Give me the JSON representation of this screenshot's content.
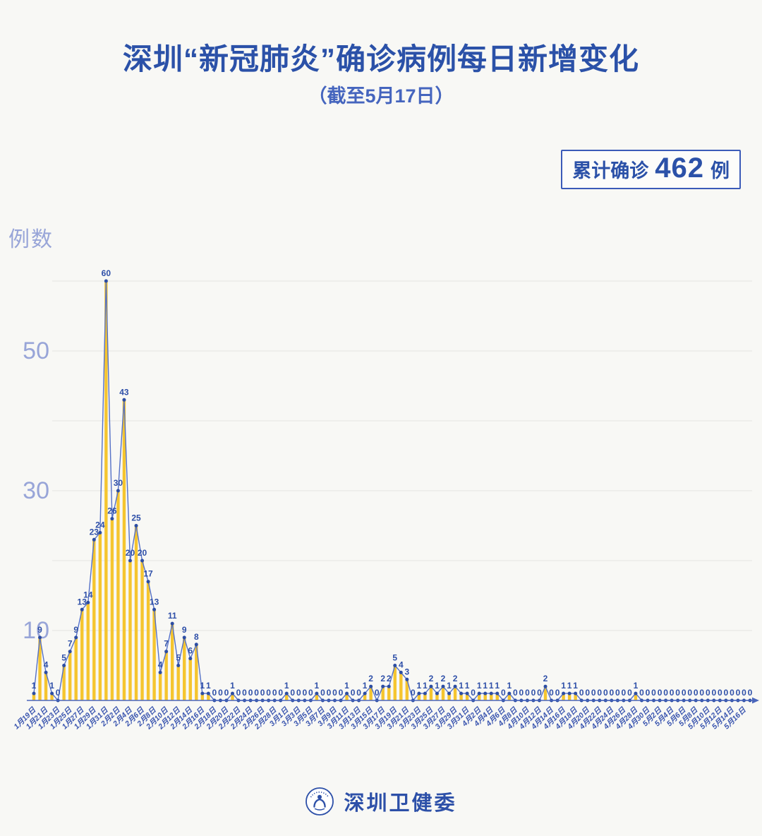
{
  "title": "深圳“新冠肺炎”确诊病例每日新增变化",
  "subtitle": "（截至5月17日）",
  "badge": {
    "prefix": "累计确诊",
    "value": "462",
    "suffix": "例"
  },
  "footer": {
    "org": "深圳卫健委",
    "logo_icon": "shenzhen-health-commission-seal"
  },
  "chart_data": {
    "type": "bar",
    "line_overlay": true,
    "title": "深圳“新冠肺炎”确诊病例每日新增变化（截至5月17日）",
    "cumulative_total": 462,
    "x_tick_label_every": 2,
    "y_axis": {
      "title": "例数",
      "labeled_ticks": [
        50,
        30,
        10
      ],
      "gridlines": [
        10,
        20,
        30,
        40,
        50,
        60
      ],
      "ylim": [
        0,
        62
      ]
    },
    "x": [
      "1月19日",
      "1月20日",
      "1月21日",
      "1月22日",
      "1月23日",
      "1月24日",
      "1月25日",
      "1月26日",
      "1月27日",
      "1月28日",
      "1月29日",
      "1月30日",
      "1月31日",
      "2月1日",
      "2月2日",
      "2月3日",
      "2月4日",
      "2月5日",
      "2月6日",
      "2月7日",
      "2月8日",
      "2月9日",
      "2月10日",
      "2月11日",
      "2月12日",
      "2月13日",
      "2月14日",
      "2月15日",
      "2月16日",
      "2月17日",
      "2月18日",
      "2月19日",
      "2月20日",
      "2月21日",
      "2月22日",
      "2月23日",
      "2月24日",
      "2月25日",
      "2月26日",
      "2月27日",
      "2月28日",
      "2月29日",
      "3月1日",
      "3月2日",
      "3月3日",
      "3月4日",
      "3月5日",
      "3月6日",
      "3月7日",
      "3月8日",
      "3月9日",
      "3月10日",
      "3月11日",
      "3月12日",
      "3月13日",
      "3月14日",
      "3月15日",
      "3月16日",
      "3月17日",
      "3月18日",
      "3月19日",
      "3月20日",
      "3月21日",
      "3月22日",
      "3月23日",
      "3月24日",
      "3月25日",
      "3月26日",
      "3月27日",
      "3月28日",
      "3月29日",
      "3月30日",
      "3月31日",
      "4月1日",
      "4月2日",
      "4月3日",
      "4月4日",
      "4月5日",
      "4月6日",
      "4月7日",
      "4月8日",
      "4月9日",
      "4月10日",
      "4月11日",
      "4月12日",
      "4月13日",
      "4月14日",
      "4月15日",
      "4月16日",
      "4月17日",
      "4月18日",
      "4月19日",
      "4月20日",
      "4月21日",
      "4月22日",
      "4月23日",
      "4月24日",
      "4月25日",
      "4月26日",
      "4月27日",
      "4月28日",
      "4月29日",
      "4月30日",
      "5月1日",
      "5月2日",
      "5月3日",
      "5月4日",
      "5月5日",
      "5月6日",
      "5月7日",
      "5月8日",
      "5月9日",
      "5月10日",
      "5月11日",
      "5月12日",
      "5月13日",
      "5月14日",
      "5月15日",
      "5月16日",
      "5月17日"
    ],
    "values": [
      1,
      9,
      4,
      1,
      0,
      5,
      7,
      9,
      13,
      14,
      23,
      24,
      60,
      26,
      30,
      43,
      20,
      25,
      20,
      17,
      13,
      4,
      7,
      11,
      5,
      9,
      6,
      8,
      1,
      1,
      0,
      0,
      0,
      1,
      0,
      0,
      0,
      0,
      0,
      0,
      0,
      0,
      1,
      0,
      0,
      0,
      0,
      1,
      0,
      0,
      0,
      0,
      1,
      0,
      0,
      1,
      2,
      0,
      2,
      2,
      5,
      4,
      3,
      0,
      1,
      1,
      2,
      1,
      2,
      1,
      2,
      1,
      1,
      0,
      1,
      1,
      1,
      1,
      0,
      1,
      0,
      0,
      0,
      0,
      0,
      2,
      0,
      0,
      1,
      1,
      1,
      0,
      0,
      0,
      0,
      0,
      0,
      0,
      0,
      0,
      1,
      0,
      0,
      0,
      0,
      0,
      0,
      0,
      0,
      0,
      0,
      0,
      0,
      0,
      0,
      0,
      0,
      0,
      0,
      0
    ],
    "colors": {
      "bar": "#F5C52F",
      "line": "#5571C7",
      "marker": "#2C4DA3",
      "value_label": "#2E4FA8",
      "grid": "#E4E4E1",
      "axis": "#4A66BB",
      "x_tick_label": "#3A55AF",
      "y_tick_label": "#98A5D8",
      "title": "#2B51A8",
      "subtitle": "#4565BE",
      "background": "#F8F8F5",
      "badge_border": "#3B5BB8"
    }
  }
}
